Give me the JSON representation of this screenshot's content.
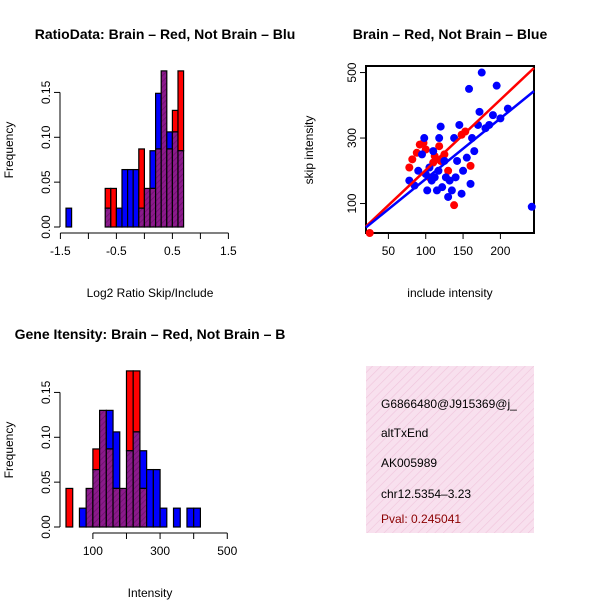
{
  "colors": {
    "brain": "#ff0000",
    "not_brain": "#0000ff",
    "overlap": "#8b1a8b",
    "info_bg": "#f7dcec",
    "pval": "#8b0000"
  },
  "chart_data": [
    {
      "id": "ratio",
      "type": "bar",
      "title": "RatioData: Brain – Red, Not Brain – Blu",
      "xlabel": "Log2 Ratio Skip/Include",
      "ylabel": "Frequency",
      "bin_start": -1.4,
      "bin_width": 0.1,
      "xlim": [
        -1.4,
        1.6
      ],
      "ylim": [
        0,
        0.175
      ],
      "xticks": [
        -1.5,
        -1.0,
        -0.5,
        0.0,
        0.5,
        1.0,
        1.5
      ],
      "xtick_labels": [
        "-1.5",
        "",
        "-0.5",
        "",
        "0.5",
        "",
        "1.5"
      ],
      "yticks": [
        0.0,
        0.05,
        0.1,
        0.15
      ],
      "ytick_labels": [
        "0.00",
        "0.05",
        "0.10",
        "0.15"
      ],
      "series": [
        {
          "name": "Brain",
          "color": "red",
          "values": [
            0,
            0,
            0,
            0,
            0,
            0,
            0,
            0.043,
            0.043,
            0,
            0,
            0,
            0,
            0.087,
            0.043,
            0.043,
            0.087,
            0.174,
            0.087,
            0.13,
            0.174,
            0,
            0,
            0,
            0,
            0,
            0,
            0,
            0,
            0
          ]
        },
        {
          "name": "Not Brain",
          "color": "blue",
          "values": [
            0.021,
            0,
            0,
            0,
            0,
            0,
            0,
            0.021,
            0,
            0.021,
            0.064,
            0.064,
            0.064,
            0.021,
            0.043,
            0.085,
            0.149,
            0.174,
            0.106,
            0.106,
            0.085,
            0,
            0,
            0,
            0,
            0,
            0,
            0,
            0,
            0
          ]
        }
      ]
    },
    {
      "id": "scatter",
      "type": "scatter",
      "title": "Brain – Red, Not Brain – Blue",
      "xlabel": "include intensity",
      "ylabel": "skip intensity",
      "xlim": [
        20,
        245
      ],
      "ylim": [
        10,
        520
      ],
      "xticks": [
        50,
        100,
        150,
        200
      ],
      "xtick_labels": [
        "50",
        "100",
        "150",
        "200"
      ],
      "yticks": [
        100,
        300,
        500
      ],
      "ytick_labels": [
        "100",
        "300",
        "500"
      ],
      "series": [
        {
          "name": "Brain",
          "color": "red",
          "points": [
            [
              25,
              10
            ],
            [
              78,
              210
            ],
            [
              82,
              235
            ],
            [
              88,
              255
            ],
            [
              92,
              280
            ],
            [
              97,
              285
            ],
            [
              100,
              265
            ],
            [
              105,
              180
            ],
            [
              110,
              225
            ],
            [
              112,
              245
            ],
            [
              118,
              275
            ],
            [
              120,
              230
            ],
            [
              125,
              250
            ],
            [
              130,
              200
            ],
            [
              138,
              95
            ],
            [
              148,
              310
            ],
            [
              153,
              320
            ],
            [
              160,
              215
            ]
          ],
          "fit": {
            "intercept": -12.86,
            "slope": 2.15
          }
        },
        {
          "name": "Not Brain",
          "color": "blue",
          "points": [
            [
              78,
              170
            ],
            [
              85,
              155
            ],
            [
              90,
              200
            ],
            [
              95,
              250
            ],
            [
              98,
              300
            ],
            [
              100,
              190
            ],
            [
              102,
              140
            ],
            [
              105,
              210
            ],
            [
              108,
              170
            ],
            [
              110,
              260
            ],
            [
              112,
              180
            ],
            [
              115,
              140
            ],
            [
              117,
              200
            ],
            [
              118,
              300
            ],
            [
              120,
              335
            ],
            [
              122,
              150
            ],
            [
              125,
              230
            ],
            [
              127,
              180
            ],
            [
              130,
              120
            ],
            [
              132,
              170
            ],
            [
              135,
              140
            ],
            [
              138,
              300
            ],
            [
              140,
              180
            ],
            [
              142,
              230
            ],
            [
              145,
              340
            ],
            [
              148,
              130
            ],
            [
              150,
              200
            ],
            [
              155,
              240
            ],
            [
              158,
              450
            ],
            [
              160,
              160
            ],
            [
              162,
              300
            ],
            [
              165,
              260
            ],
            [
              170,
              340
            ],
            [
              172,
              380
            ],
            [
              175,
              500
            ],
            [
              180,
              330
            ],
            [
              185,
              340
            ],
            [
              190,
              370
            ],
            [
              195,
              460
            ],
            [
              200,
              360
            ],
            [
              210,
              390
            ],
            [
              242,
              90
            ]
          ],
          "fit": {
            "intercept": -10.0,
            "slope": 1.85
          }
        }
      ]
    },
    {
      "id": "intensity",
      "type": "bar",
      "title": "Gene Itensity: Brain – Red, Not Brain – B",
      "xlabel": "Intensity",
      "ylabel": "Frequency",
      "bin_start": 20,
      "bin_width": 20,
      "xlim": [
        20,
        520
      ],
      "ylim": [
        0,
        0.175
      ],
      "xticks": [
        100,
        200,
        300,
        400,
        500
      ],
      "xtick_labels": [
        "100",
        "",
        "300",
        "",
        "500"
      ],
      "yticks": [
        0.0,
        0.05,
        0.1,
        0.15
      ],
      "ytick_labels": [
        "0.00",
        "0.05",
        "0.10",
        "0.15"
      ],
      "series": [
        {
          "name": "Brain",
          "color": "red",
          "values": [
            0.043,
            0,
            0,
            0.043,
            0.087,
            0.13,
            0.087,
            0.043,
            0.043,
            0.174,
            0.174,
            0.043,
            0,
            0,
            0,
            0,
            0,
            0,
            0,
            0,
            0,
            0,
            0,
            0,
            0
          ]
        },
        {
          "name": "Not Brain",
          "color": "blue",
          "values": [
            0,
            0,
            0.021,
            0.043,
            0.064,
            0.13,
            0.13,
            0.106,
            0.043,
            0.085,
            0.106,
            0.085,
            0.064,
            0.064,
            0.021,
            0,
            0.021,
            0,
            0.021,
            0.021,
            0,
            0,
            0,
            0,
            0
          ]
        }
      ]
    }
  ],
  "info": {
    "gene_id": "G6866480@J915369@j_",
    "event_type": "altTxEnd",
    "accession": "AK005989",
    "location": "chr12.5354–3.23",
    "pval": "Pval: 0.245041"
  }
}
